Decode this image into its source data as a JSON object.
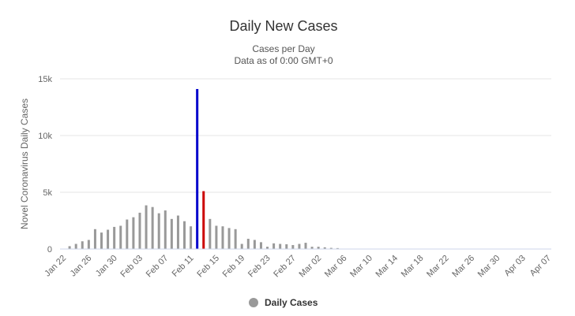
{
  "chart_data": {
    "type": "bar",
    "title": "Daily New Cases",
    "subtitle_lines": [
      "Cases per Day",
      "Data as of 0:00 GMT+0"
    ],
    "xlabel": "",
    "ylabel": "Novel Coronavirus Daily Cases",
    "ylim": [
      0,
      15000
    ],
    "y_ticks": [
      0,
      5000,
      10000,
      15000
    ],
    "y_tick_labels": [
      "0",
      "5k",
      "10k",
      "15k"
    ],
    "categories": [
      "Jan 22",
      "Jan 23",
      "Jan 24",
      "Jan 25",
      "Jan 26",
      "Jan 27",
      "Jan 28",
      "Jan 29",
      "Jan 30",
      "Jan 31",
      "Feb 01",
      "Feb 02",
      "Feb 03",
      "Feb 04",
      "Feb 05",
      "Feb 06",
      "Feb 07",
      "Feb 08",
      "Feb 09",
      "Feb 10",
      "Feb 11",
      "Feb 12",
      "Feb 13",
      "Feb 14",
      "Feb 15",
      "Feb 16",
      "Feb 17",
      "Feb 18",
      "Feb 19",
      "Feb 20",
      "Feb 21",
      "Feb 22",
      "Feb 23",
      "Feb 24",
      "Feb 25",
      "Feb 26",
      "Feb 27",
      "Feb 28",
      "Feb 29",
      "Mar 01",
      "Mar 02",
      "Mar 03",
      "Mar 04",
      "Mar 05",
      "Mar 06",
      "Mar 07",
      "Mar 08",
      "Mar 09",
      "Mar 10",
      "Mar 11",
      "Mar 12",
      "Mar 13",
      "Mar 14",
      "Mar 15",
      "Mar 16",
      "Mar 17",
      "Mar 18",
      "Mar 19",
      "Mar 20",
      "Mar 21",
      "Mar 22",
      "Mar 23",
      "Mar 24",
      "Mar 25",
      "Mar 26",
      "Mar 27",
      "Mar 28",
      "Mar 29",
      "Mar 30",
      "Mar 31",
      "Apr 01",
      "Apr 02",
      "Apr 03",
      "Apr 04",
      "Apr 05",
      "Apr 06",
      "Apr 07"
    ],
    "x_tick_labels": [
      "Jan 22",
      "Jan 26",
      "Jan 30",
      "Feb 03",
      "Feb 07",
      "Feb 11",
      "Feb 15",
      "Feb 19",
      "Feb 23",
      "Feb 27",
      "Mar 02",
      "Mar 06",
      "Mar 10",
      "Mar 14",
      "Mar 18",
      "Mar 22",
      "Mar 26",
      "Mar 30",
      "Apr 03",
      "Apr 07"
    ],
    "series": [
      {
        "name": "Daily Cases",
        "color": "#999999",
        "values": [
          0,
          250,
          450,
          680,
          800,
          1750,
          1450,
          1700,
          1950,
          2050,
          2600,
          2800,
          3200,
          3850,
          3700,
          3150,
          3400,
          2650,
          2950,
          2450,
          2000,
          14100,
          5100,
          2650,
          2050,
          2000,
          1850,
          1750,
          450,
          900,
          800,
          600,
          200,
          500,
          450,
          420,
          350,
          450,
          550,
          200,
          200,
          150,
          100,
          80,
          0,
          0,
          0,
          0,
          0,
          0,
          0,
          0,
          0,
          0,
          0,
          0,
          0,
          0,
          0,
          0,
          0,
          0,
          0,
          0,
          0,
          0,
          0,
          0,
          0,
          0,
          0,
          0,
          0,
          0,
          0,
          0,
          0
        ]
      }
    ],
    "highlight_colors": {
      "Feb 12": "#0000cc",
      "Feb 13": "#cc0000"
    },
    "grid": true,
    "legend_position": "bottom-center"
  }
}
